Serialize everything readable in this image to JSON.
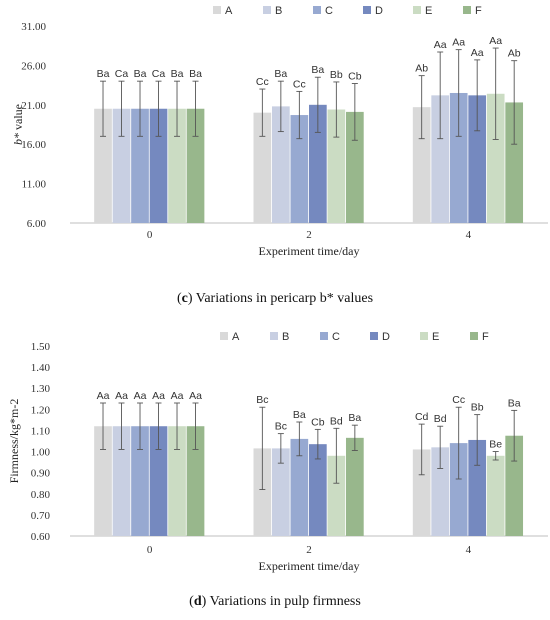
{
  "chart_data": [
    {
      "type": "bar",
      "panel_letter": "c",
      "caption": "Variations in pericarp b* values",
      "ylabel_italic": "b*",
      "ylabel_rest": " value",
      "xlabel": "Experiment time/day",
      "categories": [
        "0",
        "2",
        "4"
      ],
      "yticks": [
        "6.00",
        "11.00",
        "16.00",
        "21.00",
        "26.00",
        "31.00"
      ],
      "ylim": [
        6,
        31
      ],
      "grid": false,
      "legend_position": "top-right",
      "series": [
        {
          "name": "A",
          "color": "#d9d9d9",
          "values": [
            20.5,
            20.0,
            20.7
          ],
          "errors": [
            3.5,
            3.0,
            4.0
          ],
          "labels": [
            "Ba",
            "Cc",
            "Ab"
          ]
        },
        {
          "name": "B",
          "color": "#c8cfe2",
          "values": [
            20.5,
            20.8,
            22.2
          ],
          "errors": [
            3.5,
            3.2,
            5.5
          ],
          "labels": [
            "Ca",
            "Ba",
            "Aa"
          ]
        },
        {
          "name": "C",
          "color": "#97a9d1",
          "values": [
            20.5,
            19.7,
            22.5
          ],
          "errors": [
            3.5,
            3.0,
            5.5
          ],
          "labels": [
            "Ba",
            "Cc",
            "Aa"
          ]
        },
        {
          "name": "D",
          "color": "#7589bf",
          "values": [
            20.5,
            21.0,
            22.2
          ],
          "errors": [
            3.5,
            3.5,
            4.5
          ],
          "labels": [
            "Ca",
            "Ba",
            "Aa"
          ]
        },
        {
          "name": "E",
          "color": "#cbdcc3",
          "values": [
            20.5,
            20.4,
            22.4
          ],
          "errors": [
            3.5,
            3.5,
            5.8
          ],
          "labels": [
            "Ba",
            "Bb",
            "Aa"
          ]
        },
        {
          "name": "F",
          "color": "#98b78c",
          "values": [
            20.5,
            20.1,
            21.3
          ],
          "errors": [
            3.5,
            3.6,
            5.3
          ],
          "labels": [
            "Ba",
            "Cb",
            "Ab"
          ]
        }
      ]
    },
    {
      "type": "bar",
      "panel_letter": "d",
      "caption": "Variations in pulp firmness",
      "ylabel": "Firmness/kg*m-2",
      "xlabel": "Experiment time/day",
      "categories": [
        "0",
        "2",
        "4"
      ],
      "yticks": [
        "0.60",
        "0.70",
        "0.80",
        "0.90",
        "1.00",
        "1.10",
        "1.20",
        "1.30",
        "1.40",
        "1.50"
      ],
      "ylim": [
        0.6,
        1.5
      ],
      "grid": false,
      "legend_position": "top-right",
      "series": [
        {
          "name": "A",
          "color": "#d9d9d9",
          "values": [
            1.12,
            1.015,
            1.01
          ],
          "errors": [
            0.11,
            0.195,
            0.12
          ],
          "labels": [
            "Aa",
            "Bc",
            "Cd"
          ]
        },
        {
          "name": "B",
          "color": "#c8cfe2",
          "values": [
            1.12,
            1.015,
            1.02
          ],
          "errors": [
            0.11,
            0.07,
            0.1
          ],
          "labels": [
            "Aa",
            "Bc",
            "Bd"
          ]
        },
        {
          "name": "C",
          "color": "#97a9d1",
          "values": [
            1.12,
            1.06,
            1.04
          ],
          "errors": [
            0.11,
            0.08,
            0.17
          ],
          "labels": [
            "Aa",
            "Ba",
            "Cc"
          ]
        },
        {
          "name": "D",
          "color": "#7589bf",
          "values": [
            1.12,
            1.035,
            1.055
          ],
          "errors": [
            0.11,
            0.07,
            0.12
          ],
          "labels": [
            "Aa",
            "Cb",
            "Bb"
          ]
        },
        {
          "name": "E",
          "color": "#cbdcc3",
          "values": [
            1.12,
            0.98,
            0.98
          ],
          "errors": [
            0.11,
            0.13,
            0.02
          ],
          "labels": [
            "Aa",
            "Bd",
            "Be"
          ]
        },
        {
          "name": "F",
          "color": "#98b78c",
          "values": [
            1.12,
            1.065,
            1.075
          ],
          "errors": [
            0.11,
            0.06,
            0.12
          ],
          "labels": [
            "Aa",
            "Ba",
            "Ba"
          ]
        }
      ]
    }
  ]
}
